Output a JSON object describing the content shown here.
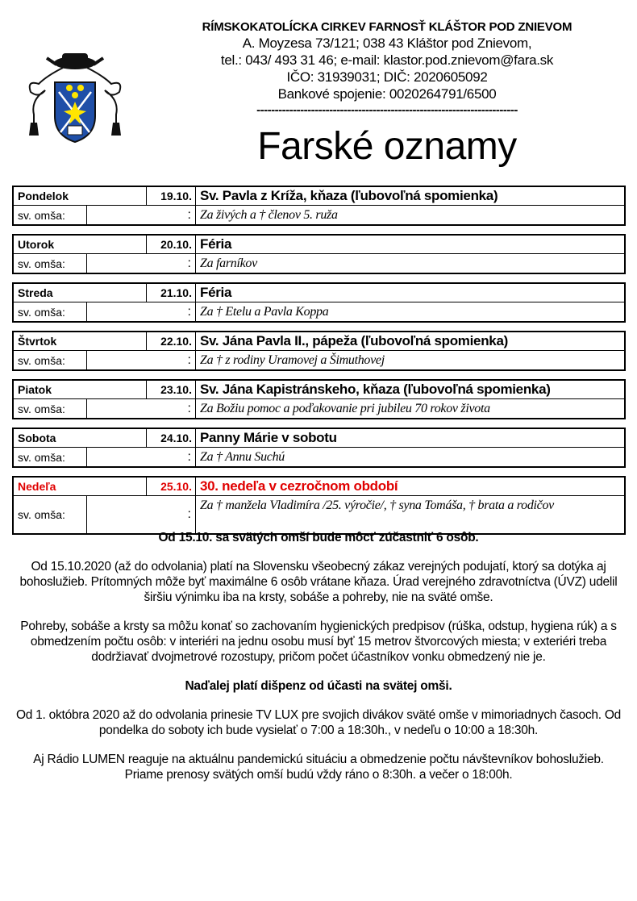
{
  "header": {
    "organization": "RÍMSKOKATOLÍCKA CIRKEV FARNOSŤ KLÁŠTOR POD ZNIEVOM",
    "address": "A. Moyzesa 73/121; 038 43 Kláštor pod Znievom,",
    "contact": "tel.: 043/ 493 31 46; e-mail: klastor.pod.znievom@fara.sk",
    "ids": "IČO: 31939031; DIČ: 2020605092",
    "bank": "Bankové spojenie: 0020264791/6500",
    "separator": "------------------------------------------------------------------------",
    "title": "Farské oznamy",
    "logo": "parish-coat-of-arms"
  },
  "colors": {
    "text": "#000000",
    "sunday": "#e00000",
    "shield": "#1f4fa8",
    "gold": "#ffe600"
  },
  "schedule": [
    {
      "day": "Pondelok",
      "date": "19.10.",
      "feast": "Sv. Pavla z Kríža, kňaza (ľubovoľná spomienka)",
      "label": "sv. omša:",
      "colon": ":",
      "intention": "Za živých a † členov 5. ruža"
    },
    {
      "day": "Utorok",
      "date": "20.10.",
      "feast": "Féria",
      "label": "sv. omša:",
      "colon": ":",
      "intention": "Za farníkov"
    },
    {
      "day": "Streda",
      "date": "21.10.",
      "feast": "Féria",
      "label": "sv. omša:",
      "colon": ":",
      "intention": "Za † Etelu a Pavla Koppa"
    },
    {
      "day": "Štvrtok",
      "date": "22.10.",
      "feast": "Sv. Jána Pavla II., pápeža (ľubovoľná spomienka)",
      "label": "sv. omša:",
      "colon": ":",
      "intention": "Za † z rodiny Uramovej a Šimuthovej"
    },
    {
      "day": "Piatok",
      "date": "23.10.",
      "feast": "Sv. Jána Kapistránskeho, kňaza (ľubovoľná spomienka)",
      "label": "sv. omša:",
      "colon": ":",
      "intention": "Za Božiu pomoc a poďakovanie pri jubileu 70 rokov života"
    },
    {
      "day": "Sobota",
      "date": "24.10.",
      "feast": "Panny Márie v sobotu",
      "label": "sv. omša:",
      "colon": ":",
      "intention": "Za † Annu Suchú"
    },
    {
      "day": "Nedeľa",
      "date": "25.10.",
      "feast": "30. nedeľa v cezročnom období",
      "label": "sv. omša:",
      "colon": ":",
      "intention": " Za † manžela Vladimíra /25. výročie/, † syna Tomáša, † brata a rodičov"
    }
  ],
  "announcements": [
    {
      "bold": true,
      "text": "Od 15.10. sa svätých omší bude môcť zúčastniť 6 osôb."
    },
    {
      "bold": false,
      "text": "Od 15.10.2020 (až do odvolania) platí na Slovensku všeobecný zákaz verejných podujatí, ktorý sa dotýka aj bohoslužieb. Prítomných môže byť maximálne 6 osôb vrátane kňaza. Úrad verejného zdravotníctva (ÚVZ) udelil širšiu výnimku iba na krsty, sobáše a pohreby, nie na sväté omše."
    },
    {
      "bold": false,
      "text": "Pohreby, sobáše a krsty sa môžu konať so zachovaním hygienických predpisov (rúška, odstup, hygiena rúk) a s obmedzením počtu osôb: v interiéri na jednu osobu musí byť 15 metrov štvorcových miesta; v exteriéri treba dodržiavať dvojmetrové rozostupy, pričom počet účastníkov vonku obmedzený nie je."
    },
    {
      "bold": true,
      "text": "Naďalej platí dišpenz od účasti na svätej omši."
    },
    {
      "bold": false,
      "text": "Od 1. októbra 2020 až do odvolania prinesie TV LUX pre svojich divákov sväté omše v mimoriadnych časoch. Od pondelka do soboty ich bude vysielať o 7:00 a 18:30h., v nedeľu o 10:00 a 18:30h."
    },
    {
      "bold": false,
      "text": "Aj Rádio LUMEN reaguje na aktuálnu pandemickú situáciu a obmedzenie počtu návštevníkov bohoslužieb. Priame prenosy svätých omší budú vždy ráno o 8:30h. a večer o 18:00h."
    }
  ]
}
